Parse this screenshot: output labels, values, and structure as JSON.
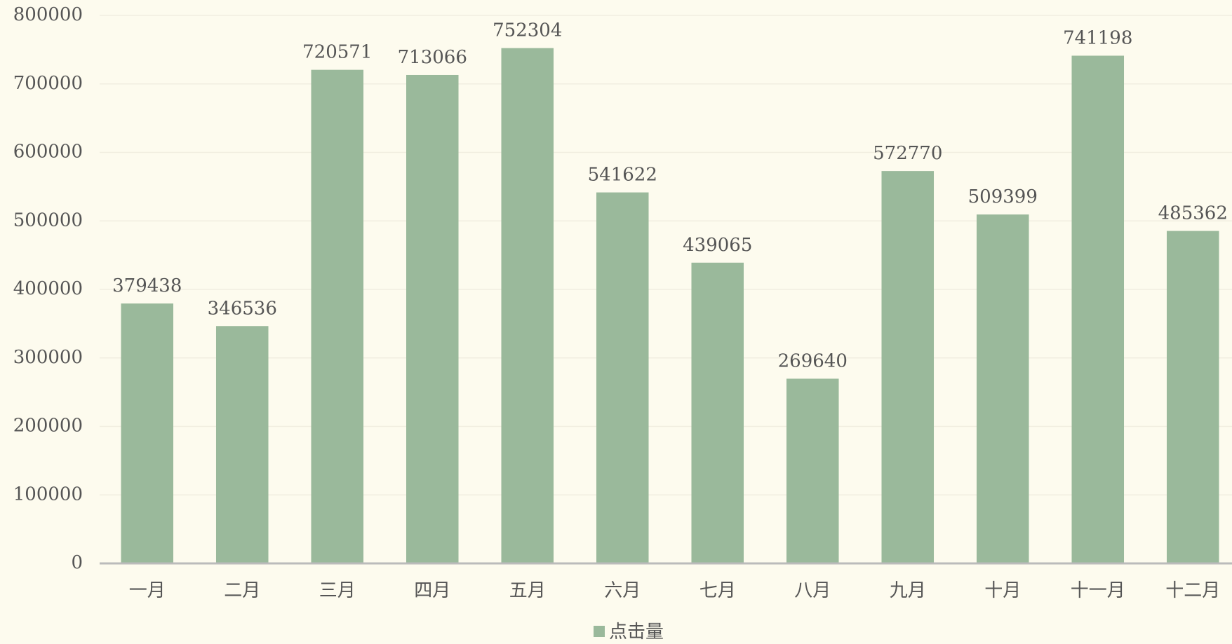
{
  "chart_data": {
    "type": "bar",
    "categories": [
      "一月",
      "二月",
      "三月",
      "四月",
      "五月",
      "六月",
      "七月",
      "八月",
      "九月",
      "十月",
      "十一月",
      "十二月"
    ],
    "series": [
      {
        "name": "点击量",
        "color": "#9ab99b",
        "values": [
          379438,
          346536,
          720571,
          713066,
          752304,
          541622,
          439065,
          269640,
          572770,
          509399,
          741198,
          485362
        ]
      }
    ],
    "ylim": [
      0,
      800000
    ],
    "yticks": [
      0,
      100000,
      200000,
      300000,
      400000,
      500000,
      600000,
      700000,
      800000
    ],
    "grid": true,
    "legend": "bottom"
  }
}
